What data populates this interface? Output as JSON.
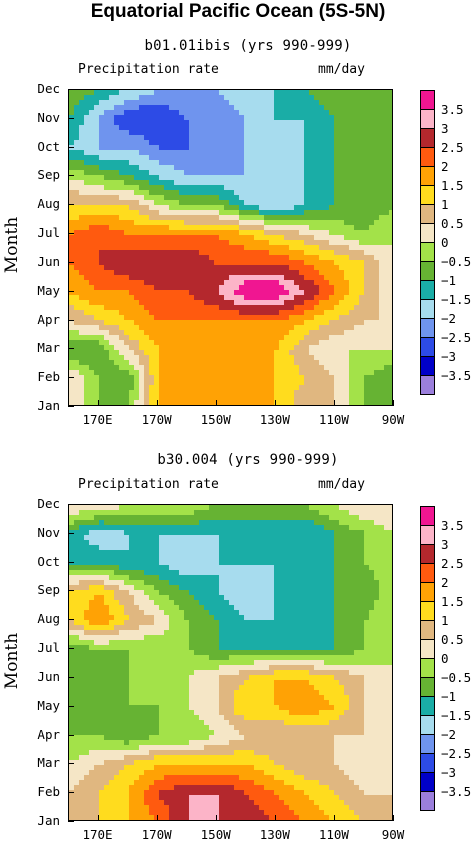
{
  "title": "Equatorial Pacific Ocean (5S-5N)",
  "colors": {
    "levels": [
      "#9b7fdc",
      "#0000c8",
      "#2d4be6",
      "#6f94ee",
      "#a7dcee",
      "#1aada6",
      "#66b333",
      "#a3e249",
      "#f5e6c6",
      "#e0b780",
      "#ffdc1e",
      "#ffa205",
      "#ff5a0f",
      "#b4282d",
      "#fcb4c8",
      "#f01691"
    ]
  },
  "colorbar_labels": [
    "3.5",
    "3",
    "2.5",
    "2",
    "1.5",
    "1",
    "0.5",
    "0",
    "−0.5",
    "−1",
    "−1.5",
    "−2",
    "−2.5",
    "−3",
    "−3.5"
  ],
  "chart_data": [
    {
      "type": "heatmap",
      "subtitle": "b01.01ibis (yrs 990-999)",
      "field_label": "Precipitation rate",
      "units": "mm/day",
      "ylabel": "Month",
      "months": [
        "Jan",
        "Feb",
        "Mar",
        "Apr",
        "May",
        "Jun",
        "Jul",
        "Aug",
        "Sep",
        "Oct",
        "Nov",
        "Dec"
      ],
      "xticks": [
        "170E",
        "170W",
        "150W",
        "130W",
        "110W",
        "90W"
      ],
      "x_longitudes": [
        160,
        170,
        180,
        190,
        200,
        210,
        220,
        230,
        240,
        250,
        260,
        270
      ],
      "values": [
        [
          0.5,
          -0.5,
          -0.5,
          1.5,
          1.5,
          1.5,
          1.5,
          1.5,
          0.5,
          0.5,
          -0.5,
          -0.5
        ],
        [
          0.5,
          -0.5,
          -1,
          1.5,
          2,
          1.5,
          1.5,
          1.5,
          1,
          0.5,
          -0.5,
          -1
        ],
        [
          -1,
          -1,
          0.5,
          1.5,
          1.5,
          1.5,
          1.5,
          1.5,
          0.5,
          0,
          0,
          0
        ],
        [
          0.5,
          1,
          1.5,
          2,
          2,
          2,
          2,
          2,
          1.5,
          1,
          0.5,
          0.5
        ],
        [
          1.5,
          2,
          2,
          2.5,
          2.5,
          3,
          4,
          4,
          3,
          2,
          1,
          0
        ],
        [
          2,
          2.5,
          3,
          3,
          3,
          2.5,
          2.5,
          2.5,
          2,
          1.5,
          1,
          0
        ],
        [
          2,
          2.5,
          2,
          2,
          2,
          2,
          1.5,
          1,
          0.5,
          0,
          -0.5,
          0
        ],
        [
          1,
          1,
          1,
          0,
          -0.5,
          -0.5,
          -1.5,
          -2,
          -1.5,
          -1,
          -1,
          -0.5
        ],
        [
          0,
          -0.5,
          -1,
          -1.5,
          -2,
          -2,
          -2,
          -2,
          -1.5,
          -1,
          -1,
          -0.5
        ],
        [
          -1.5,
          -2,
          -2,
          -2.5,
          -2.5,
          -2.5,
          -2,
          -2,
          -1.5,
          -1,
          -1,
          -0.5
        ],
        [
          -1,
          -2,
          -3,
          -3,
          -2.5,
          -2.5,
          -2,
          -1.5,
          -1.5,
          -1,
          -1,
          -0.5
        ],
        [
          -0.5,
          -1,
          -1.5,
          -2,
          -2,
          -2,
          -1.5,
          -1.5,
          -1,
          -0.5,
          -0.5,
          -0.5
        ]
      ]
    },
    {
      "type": "heatmap",
      "subtitle": "b30.004 (yrs 990-999)",
      "field_label": "Precipitation rate",
      "units": "mm/day",
      "ylabel": "Month",
      "months": [
        "Jan",
        "Feb",
        "Mar",
        "Apr",
        "May",
        "Jun",
        "Jul",
        "Aug",
        "Sep",
        "Oct",
        "Nov",
        "Dec"
      ],
      "xticks": [
        "170E",
        "170W",
        "150W",
        "130W",
        "110W",
        "90W"
      ],
      "x_longitudes": [
        160,
        170,
        180,
        190,
        200,
        210,
        220,
        230,
        240,
        250,
        260,
        270
      ],
      "values": [
        [
          0.5,
          1,
          1.5,
          2,
          3,
          3,
          3,
          2.5,
          2,
          1.5,
          1,
          0.5
        ],
        [
          0.5,
          1,
          1.5,
          2.5,
          3,
          3,
          2.5,
          2,
          1.5,
          1,
          0.5,
          0.5
        ],
        [
          0,
          0.5,
          1,
          1.5,
          1.5,
          1.5,
          1.5,
          1,
          0.5,
          0.5,
          0,
          0
        ],
        [
          -0.5,
          -0.5,
          -1,
          -0.5,
          -0.5,
          0,
          0.5,
          0.5,
          0.5,
          0.5,
          0.5,
          0
        ],
        [
          -1,
          -0.5,
          -0.5,
          -0.5,
          0,
          0.5,
          1.5,
          1.5,
          2,
          1.5,
          0.5,
          0
        ],
        [
          -1,
          -1,
          -0.5,
          -0.5,
          0,
          0.5,
          1,
          1.5,
          1.5,
          1,
          0.5,
          0
        ],
        [
          -1,
          -0.5,
          -0.5,
          -0.5,
          -0.5,
          -1,
          -1,
          -1,
          -1,
          -1,
          -0.5,
          0
        ],
        [
          1,
          2,
          1,
          0.5,
          -0.5,
          -1,
          -1.5,
          -1.5,
          -1.5,
          -1,
          -0.5,
          0
        ],
        [
          1,
          1.5,
          0.5,
          -0.5,
          -1,
          -1.5,
          -2,
          -1.5,
          -1.5,
          -1,
          -1,
          0
        ],
        [
          -1,
          -1,
          -1.5,
          -1.5,
          -2,
          -1.5,
          -1.5,
          -1.5,
          -1.5,
          -1,
          -0.5,
          0
        ],
        [
          -1,
          -2,
          -1.5,
          -1.5,
          -1.5,
          -1.5,
          -1.5,
          -1.5,
          -1.5,
          -1,
          -0.5,
          0
        ],
        [
          0.5,
          0.5,
          0,
          0,
          0,
          -0.5,
          -0.5,
          -0.5,
          -0.5,
          0,
          0.5,
          0.5
        ]
      ]
    }
  ]
}
